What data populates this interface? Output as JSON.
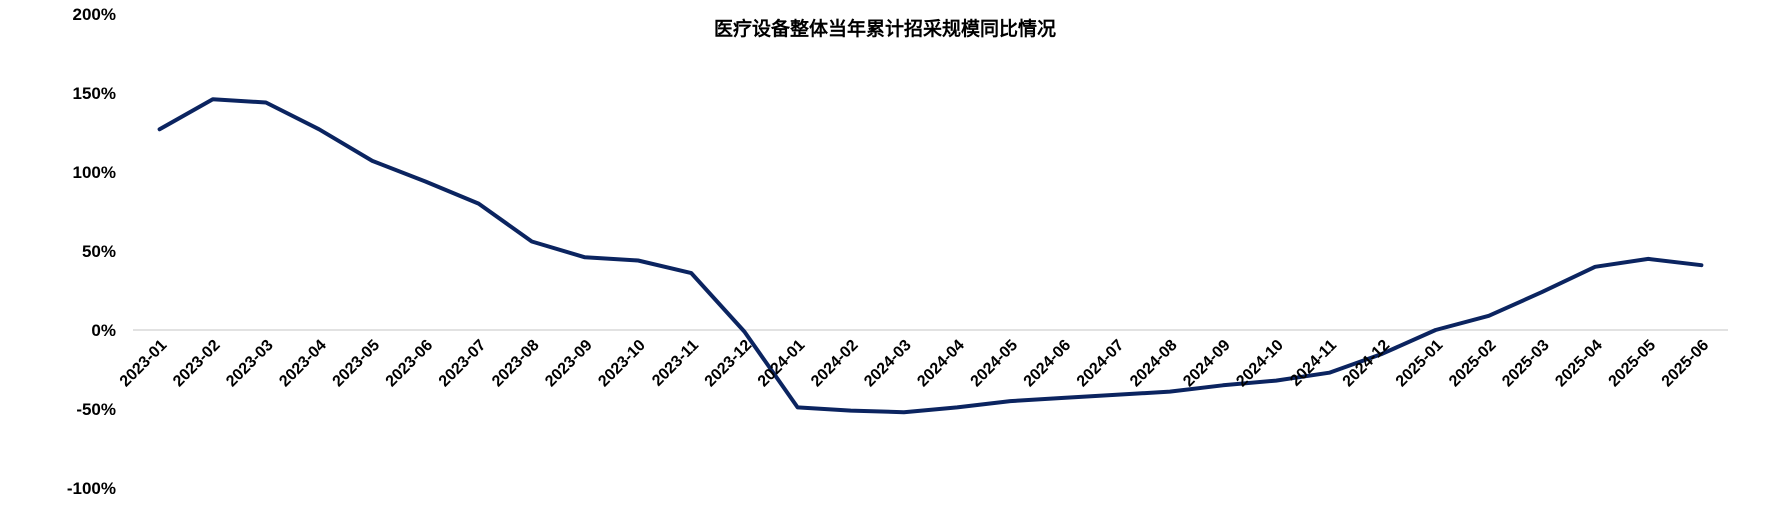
{
  "chart_data": {
    "type": "line",
    "title": "医疗设备整体当年累计招采规模同比情况",
    "xlabel": "",
    "ylabel": "",
    "x": [
      "2023-01",
      "2023-02",
      "2023-03",
      "2023-04",
      "2023-05",
      "2023-06",
      "2023-07",
      "2023-08",
      "2023-09",
      "2023-10",
      "2023-11",
      "2023-12",
      "2024-01",
      "2024-02",
      "2024-03",
      "2024-04",
      "2024-05",
      "2024-06",
      "2024-07",
      "2024-08",
      "2024-09",
      "2024-10",
      "2024-11",
      "2024-12",
      "2025-01",
      "2025-02",
      "2025-03",
      "2025-04",
      "2025-05",
      "2025-06"
    ],
    "series": [
      {
        "values": [
          127,
          146,
          144,
          127,
          107,
          94,
          80,
          56,
          46,
          44,
          36,
          -1,
          -49,
          -51,
          -52,
          -49,
          -45,
          -43,
          -41,
          -39,
          -35,
          -32,
          -27,
          -15,
          0,
          9,
          24,
          40,
          45,
          41
        ]
      }
    ],
    "yticks": [
      "200%",
      "150%",
      "100%",
      "50%",
      "0%",
      "-50%",
      "-100%"
    ],
    "ytick_values": [
      200,
      150,
      100,
      50,
      0,
      -50,
      -100
    ],
    "ylim": [
      -100,
      200
    ],
    "grid": false,
    "legend": "none",
    "colors": {
      "line": "#0b2460",
      "axis": "#d9d9d9"
    }
  }
}
